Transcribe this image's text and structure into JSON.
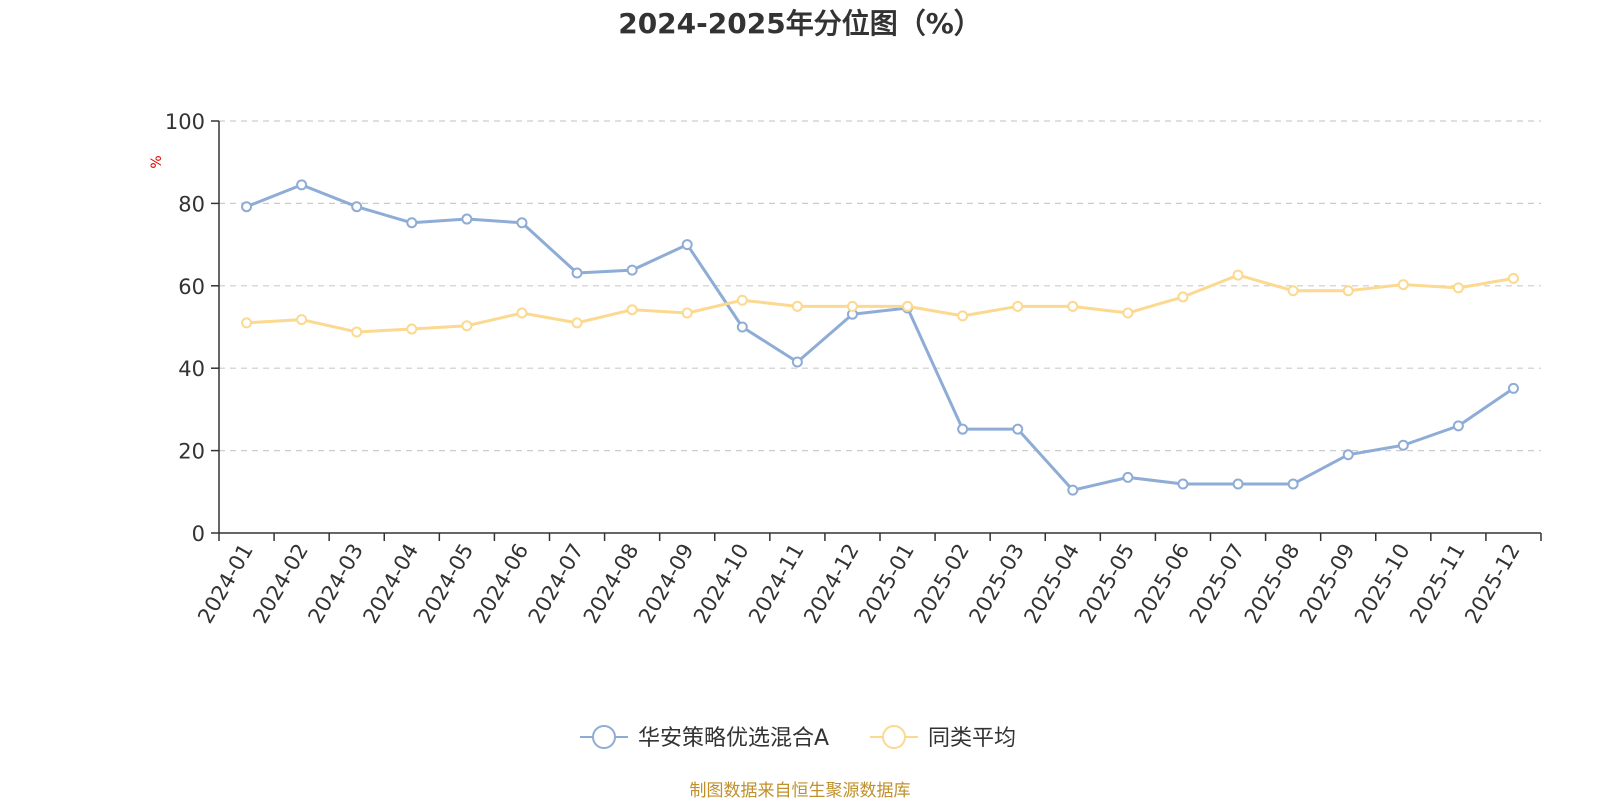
{
  "chart_data": {
    "type": "line",
    "title": "2024-2025年分位图（%）",
    "ylabel": "%",
    "xlabel": "",
    "ylim": [
      0,
      100
    ],
    "y_ticks": [
      0,
      20,
      40,
      60,
      80,
      100
    ],
    "grid": true,
    "legend_position": "bottom",
    "categories": [
      "2024-01",
      "2024-02",
      "2024-03",
      "2024-04",
      "2024-05",
      "2024-06",
      "2024-07",
      "2024-08",
      "2024-09",
      "2024-10",
      "2024-11",
      "2024-12",
      "2025-01",
      "2025-02",
      "2025-03",
      "2025-04",
      "2025-05",
      "2025-06",
      "2025-07",
      "2025-08",
      "2025-09",
      "2025-10",
      "2025-11",
      "2025-12"
    ],
    "series": [
      {
        "name": "华安策略优选混合A",
        "color": "#8eacd6",
        "values": [
          79.2,
          84.5,
          79.2,
          75.3,
          76.2,
          75.3,
          63.1,
          63.8,
          70.0,
          50.0,
          41.5,
          53.1,
          54.6,
          25.2,
          25.2,
          10.4,
          13.5,
          11.9,
          11.9,
          11.9,
          19.0,
          21.3,
          26.0,
          35.1
        ]
      },
      {
        "name": "同类平均",
        "color": "#fbd990",
        "values": [
          51.0,
          51.8,
          48.8,
          49.5,
          50.3,
          53.4,
          51.0,
          54.2,
          53.4,
          56.5,
          55.0,
          55.0,
          55.0,
          52.7,
          55.0,
          55.0,
          53.4,
          57.3,
          62.6,
          58.8,
          58.8,
          60.3,
          59.5,
          61.8
        ]
      }
    ]
  },
  "source_note": "制图数据来自恒生聚源数据库"
}
